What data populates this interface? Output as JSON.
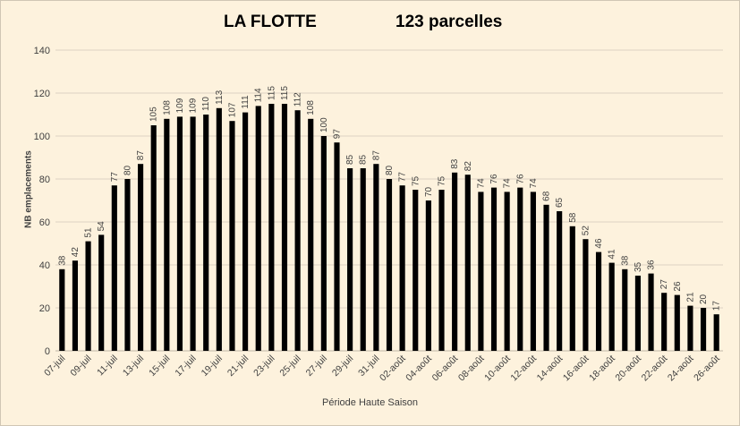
{
  "chart_data": {
    "type": "bar",
    "title": "LA FLOTTE",
    "subtitle": "123 parcelles",
    "xlabel": "Période Haute Saison",
    "ylabel": "NB emplacements",
    "ylim": [
      0,
      140
    ],
    "yticks": [
      "0",
      "20",
      "40",
      "60",
      "80",
      "100",
      "120",
      "140"
    ],
    "grid": true,
    "bar_color": "#000000",
    "categories": [
      "07-juil",
      "08-juil",
      "09-juil",
      "10-juil",
      "11-juil",
      "12-juil",
      "13-juil",
      "14-juil",
      "15-juil",
      "16-juil",
      "17-juil",
      "18-juil",
      "19-juil",
      "20-juil",
      "21-juil",
      "22-juil",
      "23-juil",
      "24-juil",
      "25-juil",
      "26-juil",
      "27-juil",
      "28-juil",
      "29-juil",
      "30-juil",
      "31-juil",
      "01-août",
      "02-août",
      "03-août",
      "04-août",
      "05-août",
      "06-août",
      "07-août",
      "08-août",
      "09-août",
      "10-août",
      "11-août",
      "12-août",
      "13-août",
      "14-août",
      "15-août",
      "16-août",
      "17-août",
      "18-août",
      "19-août",
      "20-août",
      "21-août",
      "22-août",
      "23-août",
      "24-août",
      "25-août",
      "26-août"
    ],
    "shown_tick_labels": [
      "07-juil",
      "09-juil",
      "11-juil",
      "13-juil",
      "15-juil",
      "17-juil",
      "19-juil",
      "21-juil",
      "23-juil",
      "25-juil",
      "27-juil",
      "29-juil",
      "31-juil",
      "02-août",
      "04-août",
      "06-août",
      "08-août",
      "10-août",
      "12-août",
      "14-août",
      "16-août",
      "18-août",
      "20-août",
      "22-août",
      "24-août",
      "26-août"
    ],
    "values": [
      38,
      42,
      51,
      54,
      77,
      80,
      87,
      105,
      108,
      109,
      109,
      110,
      113,
      107,
      111,
      114,
      115,
      115,
      112,
      108,
      100,
      97,
      85,
      85,
      87,
      80,
      77,
      75,
      70,
      75,
      83,
      82,
      74,
      76,
      74,
      76,
      74,
      68,
      65,
      58,
      52,
      46,
      41,
      38,
      35,
      36,
      27,
      26,
      21,
      20,
      17
    ]
  }
}
